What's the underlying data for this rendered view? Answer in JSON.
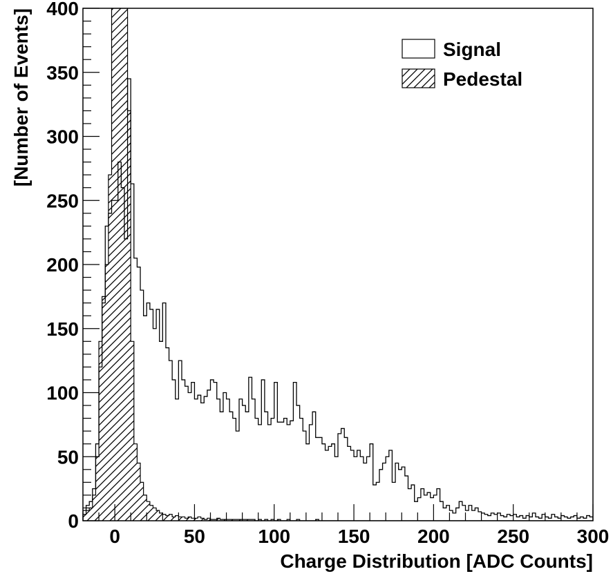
{
  "chart_data": {
    "type": "bar",
    "xlabel": "Charge Distribution [ADC Counts]",
    "ylabel": "[Number of Events]",
    "xlim": [
      -20,
      300
    ],
    "ylim": [
      0,
      400
    ],
    "x_ticks": [
      0,
      50,
      100,
      150,
      200,
      250,
      300
    ],
    "y_ticks": [
      0,
      50,
      100,
      150,
      200,
      250,
      300,
      350,
      400
    ],
    "bin_width": 2,
    "legend": {
      "position": "top-right",
      "entries": [
        {
          "label": "Signal",
          "style": "outline"
        },
        {
          "label": "Pedestal",
          "style": "hatched"
        }
      ]
    },
    "series": [
      {
        "name": "Signal",
        "style": "outline",
        "points": [
          [
            -20,
            8
          ],
          [
            -18,
            12
          ],
          [
            -16,
            15
          ],
          [
            -14,
            25
          ],
          [
            -12,
            60
          ],
          [
            -10,
            120
          ],
          [
            -8,
            170
          ],
          [
            -6,
            230
          ],
          [
            -4,
            240
          ],
          [
            -2,
            250
          ],
          [
            0,
            250
          ],
          [
            2,
            280
          ],
          [
            4,
            260
          ],
          [
            6,
            220
          ],
          [
            8,
            345
          ],
          [
            10,
            263
          ],
          [
            12,
            205
          ],
          [
            14,
            198
          ],
          [
            16,
            180
          ],
          [
            18,
            160
          ],
          [
            20,
            170
          ],
          [
            22,
            165
          ],
          [
            24,
            150
          ],
          [
            26,
            165
          ],
          [
            28,
            140
          ],
          [
            30,
            170
          ],
          [
            32,
            135
          ],
          [
            34,
            125
          ],
          [
            36,
            110
          ],
          [
            38,
            95
          ],
          [
            40,
            125
          ],
          [
            42,
            110
          ],
          [
            44,
            105
          ],
          [
            46,
            100
          ],
          [
            48,
            108
          ],
          [
            50,
            95
          ],
          [
            52,
            98
          ],
          [
            54,
            92
          ],
          [
            56,
            97
          ],
          [
            58,
            102
          ],
          [
            60,
            110
          ],
          [
            62,
            108
          ],
          [
            64,
            95
          ],
          [
            66,
            85
          ],
          [
            68,
            100
          ],
          [
            70,
            95
          ],
          [
            72,
            85
          ],
          [
            74,
            80
          ],
          [
            76,
            70
          ],
          [
            78,
            95
          ],
          [
            80,
            90
          ],
          [
            82,
            85
          ],
          [
            84,
            112
          ],
          [
            86,
            95
          ],
          [
            88,
            80
          ],
          [
            90,
            75
          ],
          [
            92,
            110
          ],
          [
            94,
            85
          ],
          [
            96,
            75
          ],
          [
            98,
            80
          ],
          [
            100,
            108
          ],
          [
            102,
            77
          ],
          [
            104,
            77
          ],
          [
            106,
            80
          ],
          [
            108,
            75
          ],
          [
            110,
            78
          ],
          [
            112,
            108
          ],
          [
            114,
            90
          ],
          [
            116,
            80
          ],
          [
            118,
            70
          ],
          [
            120,
            60
          ],
          [
            122,
            75
          ],
          [
            124,
            85
          ],
          [
            126,
            65
          ],
          [
            128,
            65
          ],
          [
            130,
            60
          ],
          [
            132,
            55
          ],
          [
            134,
            58
          ],
          [
            136,
            60
          ],
          [
            138,
            50
          ],
          [
            140,
            68
          ],
          [
            142,
            72
          ],
          [
            144,
            65
          ],
          [
            146,
            58
          ],
          [
            148,
            55
          ],
          [
            150,
            50
          ],
          [
            152,
            55
          ],
          [
            154,
            50
          ],
          [
            156,
            45
          ],
          [
            158,
            50
          ],
          [
            160,
            60
          ],
          [
            162,
            28
          ],
          [
            164,
            30
          ],
          [
            166,
            40
          ],
          [
            168,
            45
          ],
          [
            170,
            50
          ],
          [
            172,
            55
          ],
          [
            174,
            30
          ],
          [
            176,
            45
          ],
          [
            178,
            40
          ],
          [
            180,
            42
          ],
          [
            182,
            35
          ],
          [
            184,
            25
          ],
          [
            186,
            28
          ],
          [
            188,
            15
          ],
          [
            190,
            18
          ],
          [
            192,
            25
          ],
          [
            194,
            20
          ],
          [
            196,
            22
          ],
          [
            198,
            18
          ],
          [
            200,
            20
          ],
          [
            202,
            25
          ],
          [
            204,
            15
          ],
          [
            206,
            10
          ],
          [
            208,
            12
          ],
          [
            210,
            8
          ],
          [
            212,
            6
          ],
          [
            214,
            10
          ],
          [
            216,
            15
          ],
          [
            218,
            12
          ],
          [
            220,
            8
          ],
          [
            222,
            12
          ],
          [
            224,
            8
          ],
          [
            226,
            10
          ],
          [
            228,
            7
          ],
          [
            230,
            6
          ],
          [
            232,
            5
          ],
          [
            234,
            4
          ],
          [
            236,
            6
          ],
          [
            238,
            5
          ],
          [
            240,
            6
          ],
          [
            242,
            4
          ],
          [
            244,
            3
          ],
          [
            246,
            5
          ],
          [
            248,
            4
          ],
          [
            250,
            5
          ],
          [
            252,
            3
          ],
          [
            254,
            4
          ],
          [
            256,
            2
          ],
          [
            258,
            4
          ],
          [
            260,
            3
          ],
          [
            262,
            6
          ],
          [
            264,
            3
          ],
          [
            266,
            2
          ],
          [
            268,
            5
          ],
          [
            270,
            3
          ],
          [
            272,
            2
          ],
          [
            274,
            5
          ],
          [
            276,
            3
          ],
          [
            278,
            2
          ],
          [
            280,
            4
          ],
          [
            282,
            3
          ],
          [
            284,
            2
          ],
          [
            286,
            3
          ],
          [
            288,
            4
          ],
          [
            290,
            2
          ],
          [
            292,
            3
          ],
          [
            294,
            2
          ],
          [
            296,
            4
          ],
          [
            298,
            3
          ]
        ]
      },
      {
        "name": "Pedestal",
        "style": "hatched",
        "points": [
          [
            -20,
            5
          ],
          [
            -18,
            8
          ],
          [
            -16,
            10
          ],
          [
            -14,
            20
          ],
          [
            -12,
            50
          ],
          [
            -10,
            140
          ],
          [
            -8,
            175
          ],
          [
            -6,
            200
          ],
          [
            -4,
            270
          ],
          [
            -2,
            400
          ],
          [
            0,
            400
          ],
          [
            2,
            400
          ],
          [
            4,
            400
          ],
          [
            6,
            400
          ],
          [
            8,
            320
          ],
          [
            10,
            140
          ],
          [
            12,
            60
          ],
          [
            14,
            45
          ],
          [
            16,
            30
          ],
          [
            18,
            20
          ],
          [
            20,
            15
          ],
          [
            22,
            12
          ],
          [
            24,
            10
          ],
          [
            26,
            8
          ],
          [
            28,
            6
          ],
          [
            30,
            5
          ],
          [
            32,
            4
          ],
          [
            34,
            5
          ],
          [
            36,
            3
          ],
          [
            38,
            4
          ],
          [
            40,
            3
          ],
          [
            42,
            3
          ],
          [
            44,
            2
          ],
          [
            46,
            3
          ],
          [
            48,
            2
          ],
          [
            50,
            2
          ],
          [
            52,
            3
          ],
          [
            54,
            2
          ],
          [
            56,
            1
          ],
          [
            58,
            2
          ],
          [
            60,
            1
          ],
          [
            62,
            1
          ],
          [
            64,
            2
          ],
          [
            66,
            1
          ],
          [
            68,
            1
          ],
          [
            70,
            1
          ],
          [
            72,
            1
          ],
          [
            74,
            1
          ],
          [
            76,
            1
          ],
          [
            78,
            1
          ],
          [
            80,
            1
          ],
          [
            82,
            1
          ],
          [
            84,
            1
          ],
          [
            86,
            1
          ],
          [
            88,
            0
          ],
          [
            90,
            1
          ],
          [
            92,
            0
          ],
          [
            94,
            1
          ],
          [
            96,
            0
          ],
          [
            98,
            1
          ],
          [
            100,
            0
          ],
          [
            102,
            1
          ],
          [
            104,
            0
          ],
          [
            106,
            0
          ],
          [
            108,
            1
          ],
          [
            110,
            0
          ],
          [
            112,
            0
          ],
          [
            114,
            1
          ],
          [
            116,
            0
          ],
          [
            118,
            0
          ],
          [
            120,
            0
          ],
          [
            122,
            0
          ],
          [
            124,
            0
          ],
          [
            126,
            1
          ],
          [
            128,
            0
          ],
          [
            130,
            0
          ],
          [
            132,
            0
          ],
          [
            134,
            0
          ],
          [
            136,
            0
          ],
          [
            138,
            0
          ],
          [
            140,
            0
          ],
          [
            142,
            0
          ],
          [
            144,
            0
          ],
          [
            146,
            0
          ],
          [
            148,
            0
          ],
          [
            150,
            0
          ],
          [
            152,
            0
          ],
          [
            154,
            0
          ],
          [
            156,
            0
          ],
          [
            158,
            0
          ],
          [
            160,
            0
          ],
          [
            162,
            0
          ],
          [
            164,
            0
          ],
          [
            166,
            0
          ],
          [
            168,
            0
          ],
          [
            170,
            0
          ],
          [
            172,
            0
          ],
          [
            174,
            0
          ],
          [
            176,
            0
          ],
          [
            178,
            0
          ],
          [
            180,
            0
          ],
          [
            182,
            0
          ],
          [
            184,
            0
          ],
          [
            186,
            0
          ],
          [
            188,
            0
          ],
          [
            190,
            0
          ],
          [
            192,
            0
          ],
          [
            194,
            0
          ],
          [
            196,
            0
          ],
          [
            198,
            0
          ],
          [
            200,
            0
          ],
          [
            202,
            0
          ],
          [
            204,
            0
          ],
          [
            206,
            0
          ],
          [
            208,
            0
          ],
          [
            210,
            0
          ],
          [
            212,
            0
          ],
          [
            214,
            0
          ],
          [
            216,
            0
          ],
          [
            218,
            0
          ],
          [
            220,
            0
          ],
          [
            222,
            0
          ],
          [
            224,
            0
          ],
          [
            226,
            0
          ],
          [
            228,
            0
          ],
          [
            230,
            0
          ],
          [
            232,
            0
          ],
          [
            234,
            0
          ],
          [
            236,
            0
          ],
          [
            238,
            0
          ],
          [
            240,
            0
          ],
          [
            242,
            0
          ],
          [
            244,
            0
          ],
          [
            246,
            0
          ],
          [
            248,
            0
          ],
          [
            250,
            0
          ],
          [
            252,
            0
          ],
          [
            254,
            0
          ],
          [
            256,
            0
          ],
          [
            258,
            0
          ],
          [
            260,
            0
          ],
          [
            262,
            0
          ],
          [
            264,
            0
          ],
          [
            266,
            0
          ],
          [
            268,
            0
          ],
          [
            270,
            0
          ],
          [
            272,
            0
          ],
          [
            274,
            0
          ],
          [
            276,
            0
          ],
          [
            278,
            0
          ],
          [
            280,
            0
          ],
          [
            282,
            0
          ],
          [
            284,
            0
          ],
          [
            286,
            0
          ],
          [
            288,
            0
          ],
          [
            290,
            0
          ],
          [
            292,
            0
          ],
          [
            294,
            0
          ],
          [
            296,
            0
          ],
          [
            298,
            0
          ]
        ]
      }
    ]
  }
}
